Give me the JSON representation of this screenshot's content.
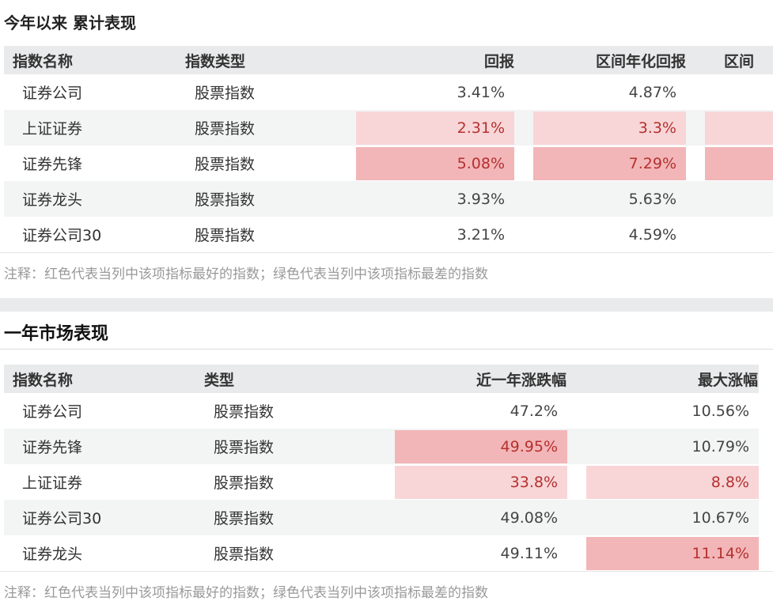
{
  "section1": {
    "title": "今年以来 累计表现",
    "columns": [
      "指数名称",
      "指数类型",
      "回报",
      "区间年化回报",
      "区间"
    ],
    "rows": [
      {
        "name": "证券公司",
        "type": "股票指数",
        "return": "3.41%",
        "annualized": "4.87%",
        "col5": ""
      },
      {
        "name": "上证证券",
        "type": "股票指数",
        "return": "2.31%",
        "annualized": "3.3%",
        "col5": ""
      },
      {
        "name": "证券先锋",
        "type": "股票指数",
        "return": "5.08%",
        "annualized": "7.29%",
        "col5": ""
      },
      {
        "name": "证券龙头",
        "type": "股票指数",
        "return": "3.93%",
        "annualized": "5.63%",
        "col5": ""
      },
      {
        "name": "证券公司30",
        "type": "股票指数",
        "return": "3.21%",
        "annualized": "4.59%",
        "col5": ""
      }
    ],
    "footnote": "注释：红色代表当列中该项指标最好的指数；绿色代表当列中该项指标最差的指数"
  },
  "section2": {
    "title": "一年市场表现",
    "columns": [
      "指数名称",
      "类型",
      "近一年涨跌幅",
      "最大涨幅"
    ],
    "rows": [
      {
        "name": "证券公司",
        "type": "股票指数",
        "change": "47.2%",
        "max_gain": "10.56%"
      },
      {
        "name": "证券先锋",
        "type": "股票指数",
        "change": "49.95%",
        "max_gain": "10.79%"
      },
      {
        "name": "上证证券",
        "type": "股票指数",
        "change": "33.8%",
        "max_gain": "8.8%"
      },
      {
        "name": "证券公司30",
        "type": "股票指数",
        "change": "49.08%",
        "max_gain": "10.67%"
      },
      {
        "name": "证券龙头",
        "type": "股票指数",
        "change": "49.11%",
        "max_gain": "11.14%"
      }
    ],
    "footnote": "注释：红色代表当列中该项指标最好的指数；绿色代表当列中该项指标最差的指数"
  },
  "colors": {
    "header_bg": "#e9eaeb",
    "stripe_bg": "#f3f4f4",
    "highlight_strong": "#f2b6b8",
    "highlight_light": "#f8d6d8",
    "highlight_text": "#b5302f"
  }
}
